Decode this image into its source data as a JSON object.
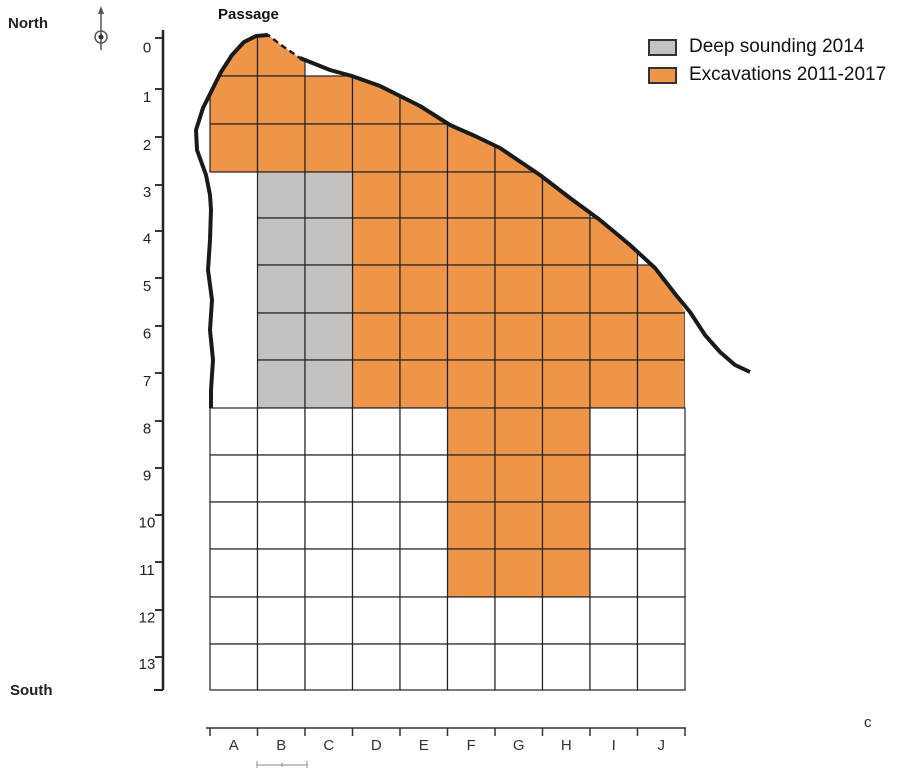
{
  "labels": {
    "north": "North",
    "south": "South",
    "passage": "Passage",
    "corner": "c"
  },
  "legend": [
    {
      "key": "deep",
      "text": "Deep sounding 2014",
      "color": "#c4c1be"
    },
    {
      "key": "exc",
      "text": "Excavations 2011-2017",
      "color": "#ef9549"
    }
  ],
  "grid": {
    "columns": [
      "A",
      "B",
      "C",
      "D",
      "E",
      "F",
      "G",
      "H",
      "I",
      "J"
    ],
    "rows": [
      "0",
      "1",
      "2",
      "3",
      "4",
      "5",
      "6",
      "7",
      "8",
      "9",
      "10",
      "11",
      "12",
      "13"
    ]
  },
  "deep_sounding_squares": [
    "B3",
    "C3",
    "B4",
    "C4",
    "B5",
    "C5",
    "B6",
    "C6",
    "B7",
    "C7"
  ],
  "excavated_squares": [
    "A0",
    "B0",
    "A1",
    "B1",
    "C1",
    "D1",
    "E1",
    "A2",
    "B2",
    "C2",
    "D2",
    "E2",
    "F2",
    "G2",
    "H2",
    "D3",
    "E3",
    "F3",
    "G3",
    "H3",
    "D4",
    "E4",
    "F4",
    "G4",
    "H4",
    "I4",
    "D5",
    "E5",
    "F5",
    "G5",
    "H5",
    "I5",
    "J5",
    "D6",
    "E6",
    "F6",
    "G6",
    "H6",
    "I6",
    "J6",
    "D7",
    "E7",
    "F7",
    "G7",
    "H7",
    "I7",
    "J7",
    "F8",
    "G8",
    "H8",
    "F9",
    "G9",
    "H9",
    "F10",
    "G10",
    "H10",
    "F11",
    "G11",
    "H11"
  ],
  "open_squares": [
    "A8",
    "B8",
    "C8",
    "D8",
    "E8",
    "I8",
    "J8",
    "A9",
    "B9",
    "C9",
    "D9",
    "E9",
    "I9",
    "J9",
    "A10",
    "B10",
    "C10",
    "D10",
    "E10",
    "I10",
    "J10",
    "A11",
    "B11",
    "C11",
    "D11",
    "E11",
    "I11",
    "J11",
    "A12",
    "B12",
    "C12",
    "D12",
    "E12",
    "F12",
    "G12",
    "H12",
    "I12",
    "J12",
    "A13",
    "B13",
    "C13",
    "D13",
    "E13",
    "F13",
    "G13",
    "H13",
    "I13",
    "J13"
  ],
  "colors": {
    "deep": "#c4c1be",
    "excavated": "#ef9549",
    "outline": "#1a1a1a",
    "grid": "#222222"
  }
}
